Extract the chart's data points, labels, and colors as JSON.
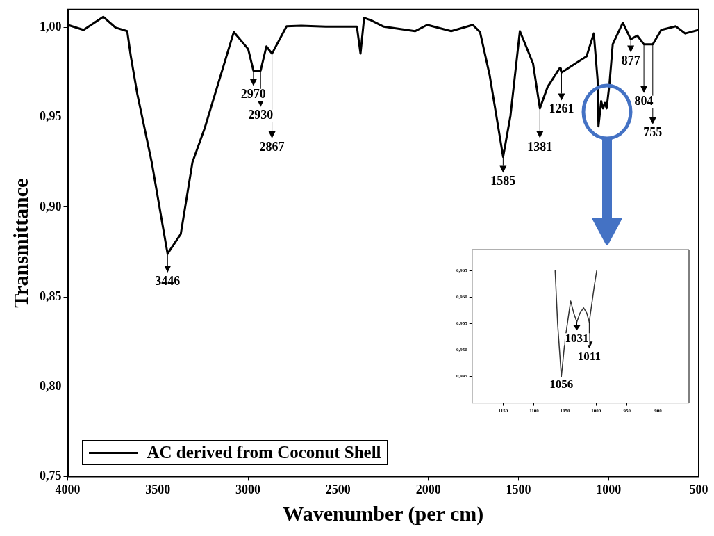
{
  "chart_data": [
    {
      "type": "line",
      "xlabel": "Wavenumber (per cm)",
      "ylabel": "Transmittance",
      "xlim": [
        4000,
        500
      ],
      "ylim": [
        0.75,
        1.01
      ],
      "xticks": [
        4000,
        3500,
        3000,
        2500,
        2000,
        1500,
        1000,
        500
      ],
      "yticks": [
        {
          "value": 0.75,
          "label": "0,75"
        },
        {
          "value": 0.8,
          "label": "0,80"
        },
        {
          "value": 0.85,
          "label": "0,85"
        },
        {
          "value": 0.9,
          "label": "0,90"
        },
        {
          "value": 0.95,
          "label": "0,95"
        },
        {
          "value": 1.0,
          "label": "1,00"
        }
      ],
      "grid": false,
      "legend": "bottom left",
      "marker": "none",
      "line_style": "solid",
      "series": [
        {
          "name": "AC derived from Coconut Shell",
          "color": "#000000",
          "x": [
            4000,
            3912,
            3803,
            3735,
            3670,
            3650,
            3614,
            3534,
            3453,
            3446,
            3433,
            3373,
            3308,
            3240,
            3079,
            2999,
            2970,
            2930,
            2898,
            2867,
            2786,
            2705,
            2569,
            2396,
            2376,
            2356,
            2316,
            2247,
            2074,
            2006,
            1873,
            1753,
            1713,
            1660,
            1585,
            1544,
            1492,
            1419,
            1381,
            1338,
            1270,
            1261,
            1122,
            1082,
            1061,
            1056,
            1041,
            1031,
            1020,
            1011,
            995,
            977,
            921,
            877,
            841,
            804,
            755,
            708,
            627,
            575,
            500
          ],
          "values": [
            1.0015,
            0.9987,
            1.006,
            1.0,
            0.998,
            0.984,
            0.963,
            0.925,
            0.878,
            0.874,
            0.876,
            0.885,
            0.925,
            0.944,
            0.9975,
            0.988,
            0.976,
            0.976,
            0.9895,
            0.9855,
            1.0007,
            1.001,
            1.0005,
            1.0005,
            0.9855,
            1.0054,
            1.004,
            1.0005,
            0.998,
            1.0015,
            0.998,
            1.0015,
            0.9975,
            0.9737,
            0.928,
            0.951,
            0.998,
            0.98,
            0.955,
            0.967,
            0.9776,
            0.975,
            0.984,
            0.9967,
            0.971,
            0.945,
            0.959,
            0.955,
            0.958,
            0.955,
            0.9686,
            0.9907,
            1.0027,
            0.9935,
            0.9955,
            0.9907,
            0.9907,
            0.9987,
            1.0007,
            0.9967,
            0.9987
          ]
        }
      ],
      "annotations": [
        {
          "text": "3446",
          "x": 3446,
          "y": 0.874
        },
        {
          "text": "2970",
          "x": 2970,
          "y": 0.976
        },
        {
          "text": "2930",
          "x": 2930,
          "y": 0.976
        },
        {
          "text": "2867",
          "x": 2867,
          "y": 0.9855
        },
        {
          "text": "1585",
          "x": 1585,
          "y": 0.928
        },
        {
          "text": "1381",
          "x": 1381,
          "y": 0.955
        },
        {
          "text": "1261",
          "x": 1261,
          "y": 0.9776
        },
        {
          "text": "877",
          "x": 877,
          "y": 0.9935
        },
        {
          "text": "804",
          "x": 804,
          "y": 0.9907
        },
        {
          "text": "755",
          "x": 755,
          "y": 0.9907
        }
      ]
    },
    {
      "type": "line",
      "xlim": [
        1200,
        850
      ],
      "ylim": [
        0.94,
        0.969
      ],
      "xticks": [
        1150,
        1100,
        1050,
        1000,
        950,
        900
      ],
      "yticks": [
        {
          "value": 0.945,
          "label": "0,945"
        },
        {
          "value": 0.95,
          "label": "0,950"
        },
        {
          "value": 0.955,
          "label": "0,955"
        },
        {
          "value": 0.96,
          "label": "0,960"
        },
        {
          "value": 0.965,
          "label": "0,965"
        }
      ],
      "grid": false,
      "marker": "none",
      "line_style": "solid",
      "series": [
        {
          "color": "#333333",
          "x": [
            1066,
            1062,
            1056,
            1050,
            1041,
            1036,
            1031,
            1026,
            1020,
            1015,
            1011,
            1003,
            999
          ],
          "values": [
            0.965,
            0.955,
            0.945,
            0.952,
            0.9593,
            0.957,
            0.9553,
            0.957,
            0.958,
            0.957,
            0.9553,
            0.962,
            0.965
          ]
        }
      ],
      "annotations": [
        {
          "text": "1056",
          "x": 1056,
          "y": 0.945
        },
        {
          "text": "1031",
          "x": 1031,
          "y": 0.9553
        },
        {
          "text": "1011",
          "x": 1011,
          "y": 0.9553
        }
      ]
    }
  ]
}
